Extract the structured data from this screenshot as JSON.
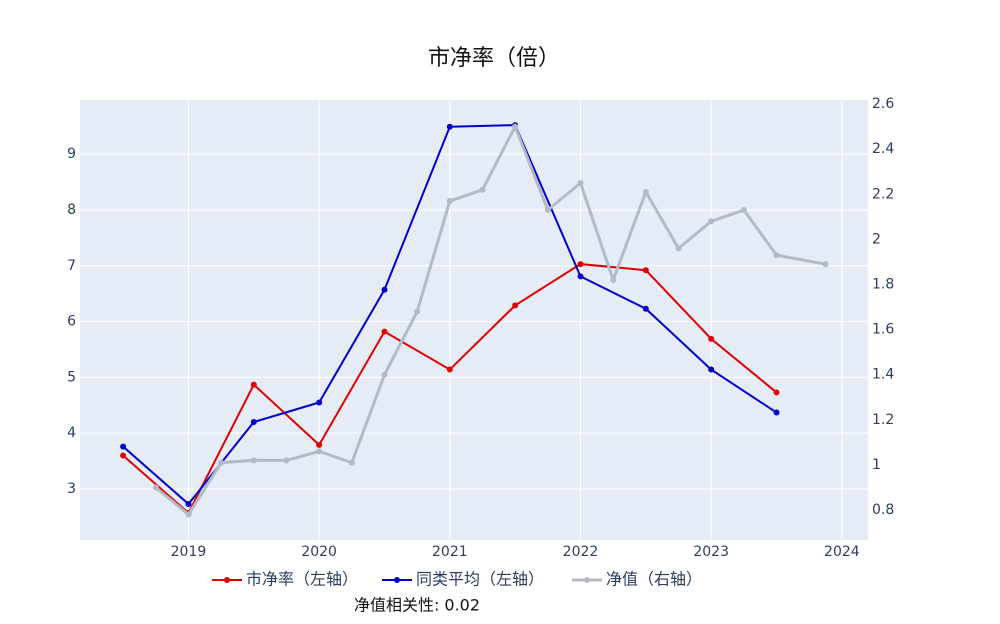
{
  "chart_data": {
    "type": "line",
    "title": "市净率（倍）",
    "annotation": "净值相关性: 0.02",
    "xlim": [
      2018.17,
      2024.2
    ],
    "xticks": [
      2019,
      2020,
      2021,
      2022,
      2023,
      2024
    ],
    "ylim": [
      2.086,
      9.97
    ],
    "yticks": [
      3,
      4,
      5,
      6,
      7,
      8,
      9
    ],
    "y2lim": [
      0.667,
      2.618
    ],
    "y2ticks": [
      0.8,
      1,
      1.2,
      1.4,
      1.6,
      1.8,
      2,
      2.2,
      2.4,
      2.6
    ],
    "grid": true,
    "legend": "bottom",
    "series": [
      {
        "name": "市净率（左轴）",
        "color": "#e00000",
        "axis": "y",
        "x": [
          2018.5,
          2019,
          2019.5,
          2020,
          2020.5,
          2021,
          2021.5,
          2022,
          2022.5,
          2023,
          2023.5
        ],
        "values": [
          3.6,
          2.57,
          4.87,
          3.79,
          5.82,
          5.14,
          6.29,
          7.03,
          6.92,
          5.69,
          4.73
        ]
      },
      {
        "name": "同类平均（左轴）",
        "color": "#0000cc",
        "axis": "y",
        "x": [
          2018.5,
          2019,
          2019.5,
          2020,
          2020.5,
          2021,
          2021.5,
          2022,
          2022.5,
          2023,
          2023.5
        ],
        "values": [
          3.76,
          2.73,
          4.2,
          4.55,
          6.57,
          9.49,
          9.52,
          6.81,
          6.23,
          5.14,
          4.37
        ]
      },
      {
        "name": "净值（右轴）",
        "color": "#b4b9c6",
        "axis": "y2",
        "x": [
          2018.75,
          2019,
          2019.25,
          2019.5,
          2019.75,
          2020,
          2020.25,
          2020.5,
          2020.75,
          2021,
          2021.25,
          2021.5,
          2021.75,
          2022,
          2022.25,
          2022.5,
          2022.75,
          2023,
          2023.25,
          2023.5,
          2023.875
        ],
        "values": [
          0.9,
          0.78,
          1.01,
          1.02,
          1.02,
          1.06,
          1.01,
          1.4,
          1.68,
          2.17,
          2.22,
          2.5,
          2.13,
          2.25,
          1.82,
          2.21,
          1.96,
          2.08,
          2.13,
          1.93,
          1.89
        ]
      }
    ]
  }
}
